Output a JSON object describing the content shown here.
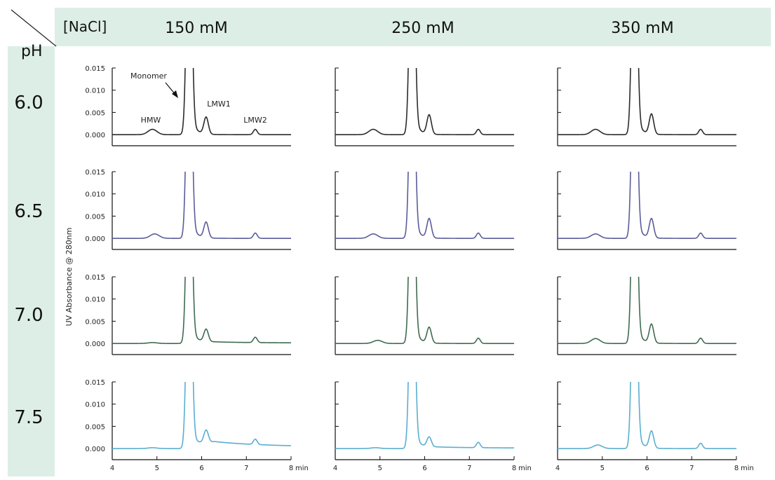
{
  "chart_data": {
    "type": "line",
    "header": {
      "corner_left": "pH",
      "corner_right": "[NaCl]",
      "columns": [
        "150 mM",
        "250 mM",
        "350 mM"
      ],
      "rows": [
        "6.0",
        "6.5",
        "7.0",
        "7.5"
      ]
    },
    "ylabel": "UV Absorbance @ 280nm",
    "x_unit": "min",
    "xlim": [
      4,
      8
    ],
    "ylim": [
      -0.0025,
      0.015
    ],
    "x_ticks": [
      "4",
      "5",
      "6",
      "7",
      "8"
    ],
    "y_ticks": [
      "0.000",
      "0.005",
      "0.010",
      "0.015"
    ],
    "annotations": {
      "monomer": "Monomer",
      "hmw": "HMW",
      "lmw1": "LMW1",
      "lmw2": "LMW2"
    },
    "colors": {
      "pH 6.0": "#2b2b2b",
      "pH 6.5": "#5a5c9a",
      "pH 7.0": "#3f6b50",
      "pH 7.5": "#5aaed0",
      "header_bg": "#ddeee6"
    },
    "panels": [
      [
        {
          "hmw": [
            4.9,
            0.0012,
            0.14
          ],
          "lmw1": [
            6.1,
            0.0038
          ],
          "lmw2": [
            7.2,
            0.0012
          ],
          "tail": 0.0
        },
        {
          "hmw": [
            4.85,
            0.0012,
            0.14
          ],
          "lmw1": [
            6.1,
            0.0043
          ],
          "lmw2": [
            7.2,
            0.0012
          ],
          "tail": 0.0
        },
        {
          "hmw": [
            4.85,
            0.0012,
            0.14
          ],
          "lmw1": [
            6.1,
            0.0045
          ],
          "lmw2": [
            7.2,
            0.0012
          ],
          "tail": 0.0
        }
      ],
      [
        {
          "hmw": [
            4.95,
            0.001,
            0.14
          ],
          "lmw1": [
            6.1,
            0.0035
          ],
          "lmw2": [
            7.2,
            0.0012
          ],
          "tail": 0.0
        },
        {
          "hmw": [
            4.85,
            0.001,
            0.14
          ],
          "lmw1": [
            6.1,
            0.0043
          ],
          "lmw2": [
            7.2,
            0.0012
          ],
          "tail": 0.0
        },
        {
          "hmw": [
            4.85,
            0.001,
            0.14
          ],
          "lmw1": [
            6.1,
            0.0043
          ],
          "lmw2": [
            7.2,
            0.0012
          ],
          "tail": 0.0
        }
      ],
      [
        {
          "hmw": [
            4.9,
            0.0002,
            0.14
          ],
          "lmw1": [
            6.1,
            0.0028
          ],
          "lmw2": [
            7.2,
            0.0012
          ],
          "tail": 0.0004
        },
        {
          "hmw": [
            4.95,
            0.0007,
            0.14
          ],
          "lmw1": [
            6.1,
            0.0035
          ],
          "lmw2": [
            7.2,
            0.0012
          ],
          "tail": 0.0
        },
        {
          "hmw": [
            4.85,
            0.0011,
            0.14
          ],
          "lmw1": [
            6.1,
            0.0042
          ],
          "lmw2": [
            7.2,
            0.0012
          ],
          "tail": 0.0
        }
      ],
      [
        {
          "hmw": [
            4.9,
            0.0002,
            0.14
          ],
          "lmw1": [
            6.1,
            0.0028
          ],
          "lmw2": [
            7.2,
            0.0012
          ],
          "tail": 0.0018
        },
        {
          "hmw": [
            4.9,
            0.0002,
            0.14
          ],
          "lmw1": [
            6.1,
            0.0022
          ],
          "lmw2": [
            7.2,
            0.0012
          ],
          "tail": 0.0004
        },
        {
          "hmw": [
            4.9,
            0.0008,
            0.14
          ],
          "lmw1": [
            6.1,
            0.0038
          ],
          "lmw2": [
            7.2,
            0.0012
          ],
          "tail": 0.0
        }
      ]
    ]
  }
}
